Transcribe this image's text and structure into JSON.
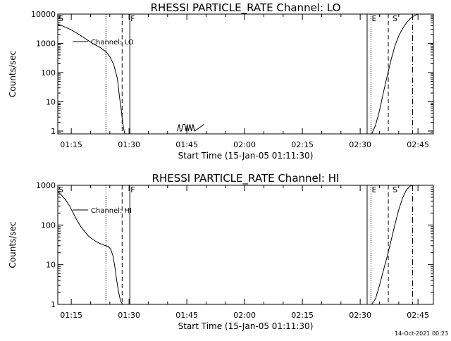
{
  "footer": {
    "timestamp": "14-Oct-2021 00:23"
  },
  "chart_data": [
    {
      "type": "line",
      "title": "RHESSI PARTICLE_RATE Channel: LO",
      "xlabel": "Start Time (15-Jan-05 01:11:30)",
      "ylabel": "Counts/sec",
      "log_y": true,
      "xlim": [
        71.5,
        169
      ],
      "ylim": [
        0.8,
        10000
      ],
      "x_ticks": [
        75,
        90,
        105,
        120,
        135,
        150,
        165
      ],
      "x_tick_labels": [
        "01:15",
        "01:30",
        "01:45",
        "02:00",
        "02:15",
        "02:30",
        "02:45"
      ],
      "y_ticks": [
        1,
        10,
        100,
        1000,
        10000
      ],
      "y_tick_labels": [
        "1",
        "10",
        "100",
        "1000",
        "10000"
      ],
      "series": [
        {
          "name": "Channel: LO",
          "segments": [
            {
              "x": [
                71.5,
                73,
                75,
                77,
                79,
                81,
                82.5,
                84,
                85,
                86,
                87,
                87.5,
                88,
                88.3,
                88.6,
                88.9
              ],
              "y": [
                4600,
                3800,
                2900,
                2000,
                1350,
                920,
                720,
                520,
                350,
                190,
                60,
                15,
                5,
                2.2,
                1.2,
                0.8
              ]
            },
            {
              "x": [
                102.5,
                103,
                103.3,
                103.6,
                104,
                104.5,
                104.8,
                105.1,
                105.4,
                105.8,
                106.2,
                106.6,
                107,
                109.5
              ],
              "y": [
                1,
                1.7,
                1,
                1,
                1.7,
                1.7,
                1,
                1.7,
                1,
                1.7,
                1,
                1.7,
                1,
                1.7
              ]
            },
            {
              "x": [
                153,
                154,
                155,
                156,
                157,
                158,
                159,
                160,
                161,
                162,
                163,
                164,
                165,
                166
              ],
              "y": [
                0.8,
                1.6,
                5,
                20,
                75,
                270,
                800,
                1800,
                3200,
                5000,
                7000,
                8800,
                10000,
                10000
              ]
            }
          ]
        }
      ],
      "markers": [
        {
          "label": "S",
          "x": 71.5
        },
        {
          "label": "F",
          "x": 90.2
        },
        {
          "label": "E",
          "x": 152.8
        },
        {
          "label": "S",
          "x": 158.2
        }
      ],
      "vlines": [
        {
          "x": 84,
          "style": "dotted"
        },
        {
          "x": 88.2,
          "style": "dashed"
        },
        {
          "x": 90.2,
          "style": "solid"
        },
        {
          "x": 151.8,
          "style": "solid"
        },
        {
          "x": 152.8,
          "style": "dotted"
        },
        {
          "x": 157.3,
          "style": "dashed"
        },
        {
          "x": 163.6,
          "style": "dashdot"
        }
      ]
    },
    {
      "type": "line",
      "title": "RHESSI PARTICLE_RATE Channel: HI",
      "xlabel": "Start Time (15-Jan-05 01:11:30)",
      "ylabel": "Counts/sec",
      "log_y": true,
      "xlim": [
        71.5,
        169
      ],
      "ylim": [
        1,
        1000
      ],
      "x_ticks": [
        75,
        90,
        105,
        120,
        135,
        150,
        165
      ],
      "x_tick_labels": [
        "01:15",
        "01:30",
        "01:45",
        "02:00",
        "02:15",
        "02:30",
        "02:45"
      ],
      "y_ticks": [
        1,
        10,
        100,
        1000
      ],
      "y_tick_labels": [
        "1",
        "10",
        "100",
        "1000"
      ],
      "series": [
        {
          "name": "Channel: HI",
          "segments": [
            {
              "x": [
                71.5,
                72.5,
                73.5,
                74.5,
                75.5,
                76.5,
                77.5,
                78.5,
                79.5,
                80.5,
                81.5,
                82.5,
                83.5,
                84.5,
                85.2,
                85.8,
                86.3,
                86.8,
                87.3,
                87.8,
                88.3
              ],
              "y": [
                700,
                560,
                430,
                310,
                200,
                130,
                90,
                68,
                52,
                44,
                38,
                34,
                31,
                29,
                25,
                17,
                9,
                4,
                2,
                1.2,
                0.9
              ]
            },
            {
              "x": [
                153,
                154,
                155,
                156,
                157,
                158,
                159,
                160,
                161,
                162,
                163,
                164,
                165,
                166
              ],
              "y": [
                0.9,
                1.4,
                3,
                7,
                16,
                40,
                100,
                240,
                480,
                760,
                960,
                1050,
                1100,
                1100
              ]
            }
          ]
        }
      ],
      "markers": [
        {
          "label": "S",
          "x": 71.5
        },
        {
          "label": "F",
          "x": 90.2
        },
        {
          "label": "E",
          "x": 152.8
        },
        {
          "label": "S",
          "x": 158.2
        }
      ],
      "vlines": [
        {
          "x": 84,
          "style": "dotted"
        },
        {
          "x": 88.2,
          "style": "dashed"
        },
        {
          "x": 90.2,
          "style": "solid"
        },
        {
          "x": 151.8,
          "style": "solid"
        },
        {
          "x": 152.8,
          "style": "dotted"
        },
        {
          "x": 157.3,
          "style": "dashed"
        },
        {
          "x": 163.6,
          "style": "dashdot"
        }
      ]
    }
  ]
}
